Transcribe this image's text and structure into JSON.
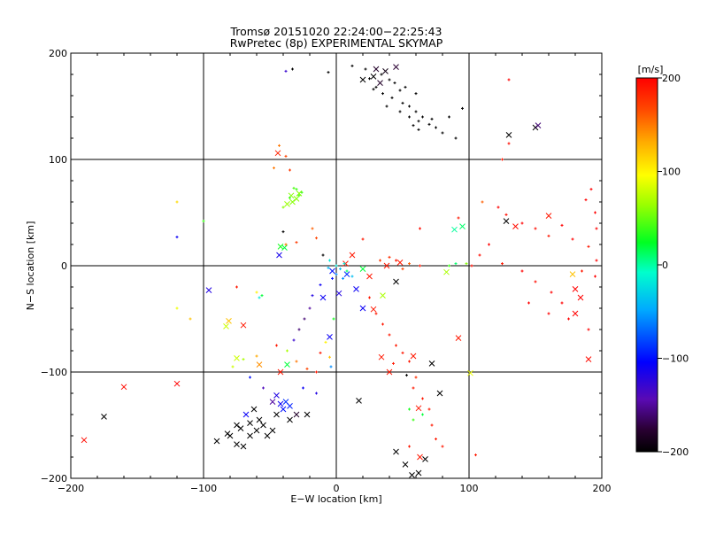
{
  "chart_data": {
    "type": "scatter",
    "title": "Tromsø 20151020 22:24:00−22:25:43",
    "subtitle": "RwPretec (8p) EXPERIMENTAL SKYMAP",
    "xlabel": "E−W location [km]",
    "ylabel": "N−S location [km]",
    "xlim": [
      -200,
      200
    ],
    "ylim": [
      -200,
      200
    ],
    "x_ticks": [
      "−200",
      "−100",
      "0",
      "100",
      "200"
    ],
    "y_ticks": [
      "−200",
      "−100",
      "0",
      "100",
      "200"
    ],
    "grid": true,
    "colorbar": {
      "label": "[m/s]",
      "range": [
        -200,
        200
      ],
      "ticks": [
        "−200",
        "−100",
        "0",
        "100",
        "200"
      ],
      "colormap": "rainbow (black-purple-blue-cyan-green-yellow-orange-red)"
    },
    "series": [
      {
        "marker": "cross",
        "points": [
          [
            30,
            185,
            -180
          ],
          [
            37,
            183,
            -190
          ],
          [
            45,
            187,
            -175
          ],
          [
            28,
            178,
            -200
          ],
          [
            33,
            172,
            -180
          ],
          [
            20,
            175,
            -200
          ],
          [
            -44,
            106,
            185
          ],
          [
            -28,
            68,
            60
          ],
          [
            -34,
            66,
            60
          ],
          [
            -30,
            63,
            60
          ],
          [
            -37,
            58,
            65
          ],
          [
            -33,
            60,
            60
          ],
          [
            -39,
            17,
            20
          ],
          [
            -43,
            10,
            -115
          ],
          [
            -96,
            -23,
            -120
          ],
          [
            -81,
            -52,
            120
          ],
          [
            -83,
            -57,
            80
          ],
          [
            -70,
            -56,
            190
          ],
          [
            -75,
            -87,
            80
          ],
          [
            -58,
            -93,
            140
          ],
          [
            -37,
            -93,
            20
          ],
          [
            -42,
            -100,
            190
          ],
          [
            -120,
            -111,
            200
          ],
          [
            -160,
            -114,
            195
          ],
          [
            -175,
            -142,
            -200
          ],
          [
            -190,
            -164,
            195
          ],
          [
            -68,
            -140,
            -110
          ],
          [
            -75,
            -150,
            -200
          ],
          [
            -82,
            -158,
            -200
          ],
          [
            -90,
            -165,
            -200
          ],
          [
            -65,
            -160,
            -200
          ],
          [
            -60,
            -155,
            -200
          ],
          [
            -55,
            -150,
            -200
          ],
          [
            -70,
            -170,
            -200
          ],
          [
            -75,
            -168,
            -200
          ],
          [
            -52,
            -160,
            -200
          ],
          [
            -48,
            -155,
            -200
          ],
          [
            -58,
            -145,
            -200
          ],
          [
            -62,
            -135,
            -200
          ],
          [
            -45,
            -140,
            -200
          ],
          [
            -45,
            -122,
            -120
          ],
          [
            -42,
            -130,
            -110
          ],
          [
            -38,
            -128,
            -90
          ],
          [
            -35,
            -132,
            -95
          ],
          [
            -40,
            -135,
            -100
          ],
          [
            -48,
            -128,
            -150
          ],
          [
            -30,
            -140,
            -180
          ],
          [
            -35,
            -145,
            -200
          ],
          [
            -22,
            -140,
            -200
          ],
          [
            -72,
            -153,
            -200
          ],
          [
            -80,
            -160,
            -200
          ],
          [
            -65,
            -148,
            -200
          ],
          [
            -10,
            -30,
            -110
          ],
          [
            2,
            -26,
            -120
          ],
          [
            15,
            -22,
            -110
          ],
          [
            8,
            -8,
            -90
          ],
          [
            -3,
            -5,
            -100
          ],
          [
            20,
            -40,
            -110
          ],
          [
            28,
            -41,
            190
          ],
          [
            35,
            -28,
            70
          ],
          [
            25,
            -10,
            190
          ],
          [
            45,
            -15,
            -200
          ],
          [
            34,
            -86,
            190
          ],
          [
            40,
            -100,
            190
          ],
          [
            58,
            -85,
            190
          ],
          [
            72,
            -92,
            -200
          ],
          [
            78,
            -120,
            -200
          ],
          [
            62,
            -134,
            190
          ],
          [
            17,
            -127,
            -200
          ],
          [
            45,
            -175,
            -200
          ],
          [
            52,
            -187,
            -200
          ],
          [
            62,
            -195,
            -200
          ],
          [
            57,
            -197,
            -200
          ],
          [
            67,
            -182,
            -200
          ],
          [
            63,
            -180,
            190
          ],
          [
            20,
            -3,
            20
          ],
          [
            48,
            3,
            190
          ],
          [
            83,
            -6,
            70
          ],
          [
            92,
            -68,
            190
          ],
          [
            101,
            -101,
            90
          ],
          [
            89,
            34,
            0
          ],
          [
            95,
            37,
            10
          ],
          [
            130,
            123,
            -200
          ],
          [
            150,
            130,
            -200
          ],
          [
            152,
            132,
            -160
          ],
          [
            128,
            42,
            -200
          ],
          [
            135,
            37,
            195
          ],
          [
            160,
            47,
            190
          ],
          [
            178,
            -8,
            120
          ],
          [
            180,
            -22,
            200
          ],
          [
            184,
            -30,
            200
          ],
          [
            190,
            -88,
            195
          ],
          [
            180,
            -45,
            200
          ],
          [
            -42,
            18,
            30
          ],
          [
            12,
            10,
            190
          ],
          [
            7,
            2,
            190
          ],
          [
            38,
            0,
            190
          ],
          [
            -5,
            -67,
            -110
          ]
        ]
      },
      {
        "marker": "dot",
        "points": [
          [
            25,
            176,
            -200
          ],
          [
            30,
            168,
            -200
          ],
          [
            35,
            162,
            -200
          ],
          [
            42,
            158,
            -200
          ],
          [
            48,
            165,
            -200
          ],
          [
            50,
            153,
            -200
          ],
          [
            55,
            150,
            -200
          ],
          [
            60,
            145,
            -200
          ],
          [
            65,
            140,
            -200
          ],
          [
            70,
            133,
            -200
          ],
          [
            58,
            132,
            -200
          ],
          [
            62,
            128,
            -200
          ],
          [
            75,
            130,
            -200
          ],
          [
            80,
            125,
            -200
          ],
          [
            90,
            120,
            -200
          ],
          [
            12,
            188,
            -200
          ],
          [
            22,
            185,
            -200
          ],
          [
            40,
            175,
            -200
          ],
          [
            44,
            172,
            -200
          ],
          [
            52,
            168,
            -200
          ],
          [
            60,
            162,
            -200
          ],
          [
            34,
            180,
            -200
          ],
          [
            28,
            166,
            -200
          ],
          [
            38,
            150,
            -200
          ],
          [
            48,
            145,
            -200
          ],
          [
            55,
            140,
            -200
          ],
          [
            62,
            136,
            -200
          ],
          [
            72,
            138,
            -200
          ],
          [
            85,
            140,
            -200
          ],
          [
            95,
            148,
            -200
          ],
          [
            -33,
            185,
            -200
          ],
          [
            -6,
            182,
            -200
          ],
          [
            -38,
            183,
            -130
          ],
          [
            -43,
            113,
            150
          ],
          [
            -38,
            103,
            170
          ],
          [
            -47,
            92,
            150
          ],
          [
            -35,
            90,
            175
          ],
          [
            -30,
            72,
            40
          ],
          [
            -26,
            69,
            40
          ],
          [
            -32,
            73,
            45
          ],
          [
            -28,
            66,
            45
          ],
          [
            -35,
            64,
            40
          ],
          [
            -40,
            55,
            60
          ],
          [
            -120,
            60,
            110
          ],
          [
            -100,
            42,
            40
          ],
          [
            -120,
            27,
            -110
          ],
          [
            -40,
            32,
            -200
          ],
          [
            -38,
            20,
            150
          ],
          [
            -30,
            22,
            175
          ],
          [
            -18,
            35,
            160
          ],
          [
            -15,
            26,
            170
          ],
          [
            -10,
            10,
            -200
          ],
          [
            -5,
            5,
            -20
          ],
          [
            0,
            0,
            -20
          ],
          [
            3,
            -3,
            -40
          ],
          [
            6,
            2,
            -20
          ],
          [
            -6,
            -2,
            -40
          ],
          [
            0,
            -8,
            -60
          ],
          [
            -3,
            -12,
            -100
          ],
          [
            5,
            -12,
            -60
          ],
          [
            8,
            -5,
            10
          ],
          [
            12,
            -10,
            -40
          ],
          [
            -12,
            -18,
            -110
          ],
          [
            -18,
            -28,
            -120
          ],
          [
            -20,
            -40,
            -150
          ],
          [
            -24,
            -50,
            -160
          ],
          [
            -28,
            -60,
            -160
          ],
          [
            -32,
            -70,
            -130
          ],
          [
            -37,
            -80,
            70
          ],
          [
            -30,
            -90,
            150
          ],
          [
            -22,
            -97,
            170
          ],
          [
            -15,
            -100,
            190
          ],
          [
            -12,
            -82,
            190
          ],
          [
            -8,
            -72,
            100
          ],
          [
            -5,
            -86,
            120
          ],
          [
            -4,
            -95,
            -60
          ],
          [
            -15,
            -120,
            -120
          ],
          [
            -25,
            -115,
            -110
          ],
          [
            -55,
            -115,
            -140
          ],
          [
            -65,
            -105,
            -100
          ],
          [
            -78,
            -95,
            80
          ],
          [
            -60,
            -85,
            130
          ],
          [
            -45,
            -75,
            190
          ],
          [
            -70,
            -88,
            70
          ],
          [
            -120,
            -40,
            90
          ],
          [
            -110,
            -50,
            120
          ],
          [
            -75,
            -20,
            190
          ],
          [
            -58,
            -30,
            -20
          ],
          [
            130,
            175,
            200
          ],
          [
            130,
            115,
            195
          ],
          [
            125,
            100,
            190
          ],
          [
            110,
            60,
            160
          ],
          [
            122,
            55,
            200
          ],
          [
            128,
            48,
            195
          ],
          [
            140,
            40,
            200
          ],
          [
            150,
            35,
            195
          ],
          [
            160,
            28,
            190
          ],
          [
            170,
            38,
            200
          ],
          [
            178,
            25,
            200
          ],
          [
            190,
            18,
            190
          ],
          [
            188,
            62,
            200
          ],
          [
            192,
            72,
            200
          ],
          [
            195,
            50,
            200
          ],
          [
            196,
            35,
            200
          ],
          [
            115,
            20,
            200
          ],
          [
            108,
            10,
            195
          ],
          [
            125,
            2,
            190
          ],
          [
            140,
            -5,
            200
          ],
          [
            150,
            -15,
            195
          ],
          [
            162,
            -25,
            200
          ],
          [
            170,
            -35,
            200
          ],
          [
            145,
            -35,
            200
          ],
          [
            160,
            -45,
            200
          ],
          [
            175,
            -50,
            200
          ],
          [
            190,
            -60,
            200
          ],
          [
            195,
            -10,
            200
          ],
          [
            185,
            -5,
            190
          ],
          [
            196,
            5,
            200
          ],
          [
            102,
            0,
            195
          ],
          [
            98,
            2,
            60
          ],
          [
            90,
            2,
            10
          ],
          [
            85,
            0,
            40
          ],
          [
            63,
            0,
            190
          ],
          [
            55,
            2,
            160
          ],
          [
            50,
            -3,
            170
          ],
          [
            45,
            5,
            190
          ],
          [
            40,
            8,
            180
          ],
          [
            33,
            5,
            175
          ],
          [
            20,
            25,
            190
          ],
          [
            63,
            35,
            195
          ],
          [
            92,
            45,
            190
          ],
          [
            25,
            -30,
            190
          ],
          [
            30,
            -45,
            190
          ],
          [
            35,
            -55,
            190
          ],
          [
            40,
            -65,
            190
          ],
          [
            45,
            -75,
            190
          ],
          [
            50,
            -82,
            190
          ],
          [
            55,
            -90,
            190
          ],
          [
            43,
            -92,
            190
          ],
          [
            60,
            -105,
            180
          ],
          [
            58,
            -115,
            190
          ],
          [
            65,
            -125,
            190
          ],
          [
            70,
            -135,
            190
          ],
          [
            72,
            -150,
            190
          ],
          [
            75,
            -163,
            190
          ],
          [
            80,
            -170,
            190
          ],
          [
            65,
            -140,
            20
          ],
          [
            55,
            -135,
            30
          ],
          [
            58,
            -145,
            40
          ],
          [
            105,
            -178,
            190
          ],
          [
            55,
            -170,
            190
          ],
          [
            53,
            -103,
            -200
          ],
          [
            -60,
            -25,
            100
          ],
          [
            -56,
            -28,
            20
          ],
          [
            -2,
            -50,
            30
          ]
        ]
      }
    ]
  }
}
